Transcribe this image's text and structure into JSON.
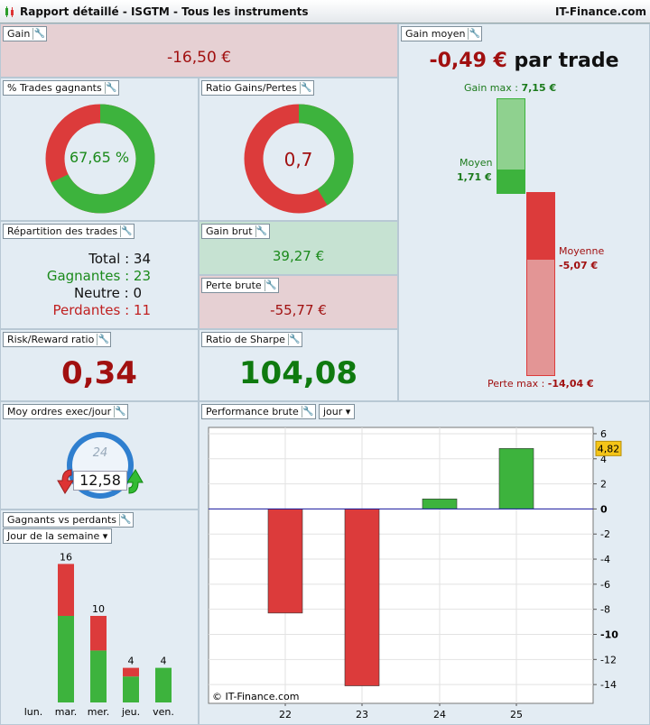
{
  "window": {
    "title": "Rapport détaillé - ISGTM - Tous les instruments",
    "brand": "IT-Finance.com"
  },
  "gain": {
    "label": "Gain",
    "value": "-16,50 €"
  },
  "trades_gagnants": {
    "label": "% Trades gagnants",
    "value": "67,65 %",
    "fraction": 0.6765
  },
  "ratio_gp": {
    "label": "Ratio Gains/Pertes",
    "value": "0,7",
    "fraction": 0.4118
  },
  "gain_moyen": {
    "label": "Gain moyen",
    "value": "-0,49 €",
    "suffix": "par trade",
    "gain_max_label": "Gain max :",
    "gain_max_value": "7,15 €",
    "moyen_label": "Moyen",
    "moyen_value": "1,71 €",
    "moyenne_label": "Moyenne",
    "moyenne_value": "-5,07 €",
    "perte_max_label": "Perte max :",
    "perte_max_value": "-14,04 €"
  },
  "repartition": {
    "label": "Répartition des trades",
    "total_label": "Total :",
    "total": "34",
    "gagnantes_label": "Gagnantes :",
    "gagnantes": "23",
    "neutre_label": "Neutre :",
    "neutre": "0",
    "perdantes_label": "Perdantes :",
    "perdantes": "11"
  },
  "gain_brut": {
    "label": "Gain brut",
    "value": "39,27 €"
  },
  "perte_brute": {
    "label": "Perte brute",
    "value": "-55,77 €"
  },
  "risk_reward": {
    "label": "Risk/Reward ratio",
    "value": "0,34"
  },
  "sharpe": {
    "label": "Ratio de Sharpe",
    "value": "104,08"
  },
  "moy_ordres": {
    "label": "Moy ordres exec/jour",
    "value": "12,58",
    "clock_label": "24"
  },
  "gagnants_perdants": {
    "label": "Gagnants vs perdants",
    "dropdown": "Jour de la semaine",
    "days": [
      {
        "day": "lun.",
        "total": "",
        "win": 0,
        "loss": 0
      },
      {
        "day": "mar.",
        "total": "16",
        "win": 10,
        "loss": 6
      },
      {
        "day": "mer.",
        "total": "10",
        "win": 6,
        "loss": 4
      },
      {
        "day": "jeu.",
        "total": "4",
        "win": 3,
        "loss": 1
      },
      {
        "day": "ven.",
        "total": "4",
        "win": 4,
        "loss": 0
      }
    ],
    "colors": {
      "win": "#3db33d",
      "loss": "#dc3b3b"
    }
  },
  "performance": {
    "label": "Performance brute",
    "dropdown": "jour",
    "copyright": "© IT-Finance.com",
    "current_value": "4,82"
  },
  "chart_data": {
    "type": "bar",
    "categories": [
      "22",
      "23",
      "24",
      "25"
    ],
    "values": [
      -8.3,
      -14.1,
      0.8,
      4.82
    ],
    "ylim": [
      -15.5,
      6.5
    ],
    "yticks": [
      "6",
      "4",
      "2",
      "0",
      "-2",
      "-4",
      "-6",
      "-8",
      "-10",
      "-12",
      "-14"
    ],
    "xlabel": "",
    "ylabel": "",
    "title": ""
  }
}
